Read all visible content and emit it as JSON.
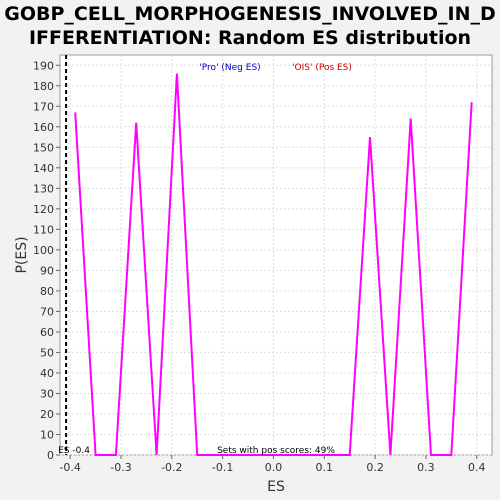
{
  "chart_data": {
    "type": "line",
    "title": "GOBP_CELL_MORPHOGENESIS_INVOLVED_IN_D\nIFFERENTIATION: Random ES distribution",
    "xlabel": "ES",
    "ylabel": "P(ES)",
    "xlim": [
      -0.42,
      0.43
    ],
    "ylim": [
      0,
      195
    ],
    "x_ticks": [
      -0.4,
      -0.3,
      -0.2,
      -0.1,
      0.0,
      0.1,
      0.2,
      0.3,
      0.4
    ],
    "y_ticks": [
      0,
      10,
      20,
      30,
      40,
      50,
      60,
      70,
      80,
      90,
      100,
      110,
      120,
      130,
      140,
      150,
      160,
      170,
      180,
      190
    ],
    "grid": true,
    "series": [
      {
        "color": "#ff00ff",
        "x": [
          -0.39,
          -0.35,
          -0.31,
          -0.27,
          -0.23,
          -0.19,
          -0.15,
          -0.11,
          -0.07,
          -0.03,
          0.01,
          0.05,
          0.09,
          0.13,
          0.15,
          0.19,
          0.23,
          0.27,
          0.31,
          0.35,
          0.39
        ],
        "y": [
          167,
          0,
          0,
          162,
          0,
          186,
          0,
          0,
          0,
          0,
          0,
          0,
          0,
          0,
          0,
          155,
          0,
          164,
          0,
          0,
          172
        ]
      }
    ],
    "vline": {
      "x": -0.408,
      "label": "ES -0.4"
    },
    "annotations": {
      "pro_label": "'Pro' (Neg ES)",
      "pro_color": "#0000cc",
      "ois_label": "'OIS' (Pos ES)",
      "ois_color": "#cc0000",
      "pos_scores_label": "Sets with pos scores: 49%"
    }
  }
}
